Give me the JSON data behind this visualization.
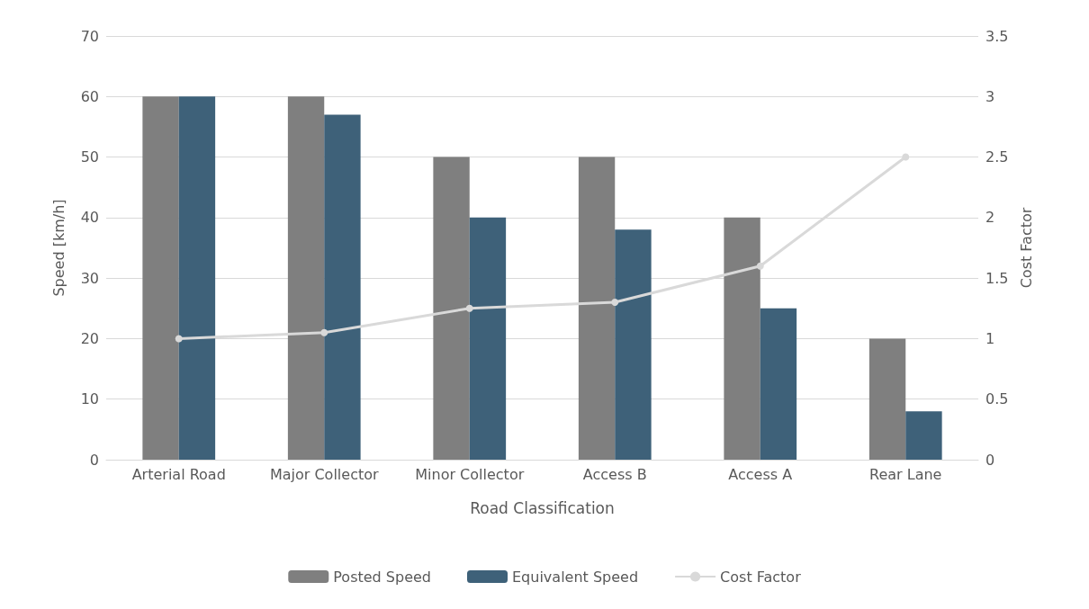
{
  "chart_data": {
    "type": "bar",
    "categories": [
      "Arterial Road",
      "Major Collector",
      "Minor Collector",
      "Access B",
      "Access A",
      "Rear Lane"
    ],
    "xlabel": "Road Classification",
    "ylabel": "Speed [km/h]",
    "y2label": "Cost Factor",
    "series": [
      {
        "name": "Posted Speed",
        "color": "#7f7f7f",
        "values": [
          60,
          60,
          50,
          50,
          40,
          20
        ]
      },
      {
        "name": "Equivalent Speed",
        "color": "#3e6179",
        "values": [
          60,
          57,
          40,
          38,
          25,
          8
        ]
      },
      {
        "name": "Cost Factor",
        "type": "line",
        "axis": "y2",
        "color": "#d9d9d9",
        "marker": "circle",
        "values": [
          1,
          1.05,
          1.25,
          1.3,
          1.6,
          2.5
        ]
      }
    ],
    "ylim": [
      0,
      70
    ],
    "yticks": [
      0,
      10,
      20,
      30,
      40,
      50,
      60,
      70
    ],
    "y2lim": [
      0,
      3.5
    ],
    "y2ticks": [
      0,
      0.5,
      1,
      1.5,
      2,
      2.5,
      3,
      3.5
    ],
    "grid": "y",
    "legend": "bottom"
  }
}
